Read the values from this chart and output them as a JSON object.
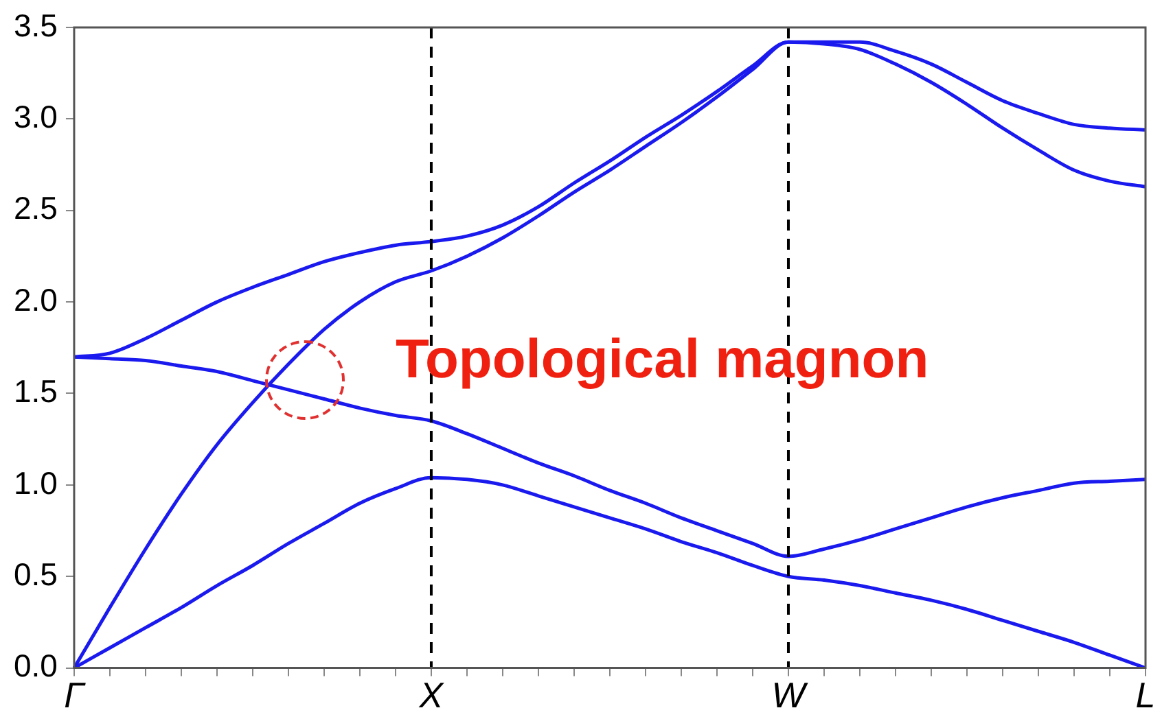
{
  "chart_data": {
    "type": "line",
    "annotations": [
      "Topological magnon"
    ],
    "categories": [
      "Γ",
      null,
      null,
      null,
      null,
      null,
      null,
      null,
      null,
      null,
      "X",
      null,
      null,
      null,
      null,
      null,
      null,
      null,
      null,
      null,
      "W",
      null,
      null,
      null,
      null,
      null,
      null,
      null,
      null,
      null,
      "L"
    ],
    "ylim": [
      0,
      3.5
    ],
    "yticks": [
      {
        "value": 0,
        "label": "0.0"
      },
      {
        "value": 0.5,
        "label": "0.5"
      },
      {
        "value": 1,
        "label": "1.0"
      },
      {
        "value": 1.5,
        "label": "1.5"
      },
      {
        "value": 2,
        "label": "2.0"
      },
      {
        "value": 2.5,
        "label": "2.5"
      },
      {
        "value": 3,
        "label": "3.0"
      },
      {
        "value": 3.5,
        "label": "3.5"
      }
    ],
    "series": [
      {
        "color": "#1a1aee",
        "values": [
          0,
          0.11,
          0.22,
          0.33,
          0.45,
          0.56,
          0.68,
          0.79,
          0.9,
          0.98,
          1.04,
          1.03,
          1.0,
          0.94,
          0.88,
          0.82,
          0.76,
          0.69,
          0.63,
          0.56,
          0.5,
          0.48,
          0.45,
          0.41,
          0.37,
          0.32,
          0.26,
          0.2,
          0.14,
          0.07,
          0
        ]
      },
      {
        "color": "#1a1aee",
        "values": [
          0,
          0.33,
          0.65,
          0.95,
          1.22,
          1.45,
          1.66,
          1.85,
          2.0,
          2.11,
          2.17,
          2.25,
          2.35,
          2.47,
          2.6,
          2.72,
          2.85,
          2.98,
          3.12,
          3.27,
          3.42,
          3.41,
          3.38,
          3.3,
          3.2,
          3.08,
          2.95,
          2.83,
          2.72,
          2.66,
          2.63
        ]
      },
      {
        "color": "#1a1aee",
        "values": [
          1.7,
          1.72,
          1.8,
          1.9,
          2.0,
          2.08,
          2.15,
          2.22,
          2.27,
          2.31,
          2.33,
          2.36,
          2.42,
          2.52,
          2.65,
          2.77,
          2.9,
          3.02,
          3.15,
          3.29,
          3.42,
          3.42,
          3.42,
          3.37,
          3.3,
          3.2,
          3.1,
          3.03,
          2.97,
          2.95,
          2.94
        ]
      },
      {
        "color": "#1a1aee",
        "values": [
          1.7,
          1.69,
          1.68,
          1.65,
          1.62,
          1.57,
          1.52,
          1.47,
          1.42,
          1.38,
          1.35,
          1.28,
          1.2,
          1.12,
          1.05,
          0.97,
          0.9,
          0.82,
          0.75,
          0.68,
          0.61,
          0.65,
          0.7,
          0.76,
          0.82,
          0.88,
          0.93,
          0.97,
          1.01,
          1.02,
          1.03
        ]
      }
    ],
    "ref_lines": [
      {
        "axis": "x",
        "value": "X",
        "color": "#000000",
        "line_style": "dashed"
      },
      {
        "axis": "x",
        "value": "W",
        "color": "#000000",
        "line_style": "dashed"
      }
    ],
    "grid": false,
    "legend": false,
    "marker": "none",
    "line_style": "solid"
  }
}
